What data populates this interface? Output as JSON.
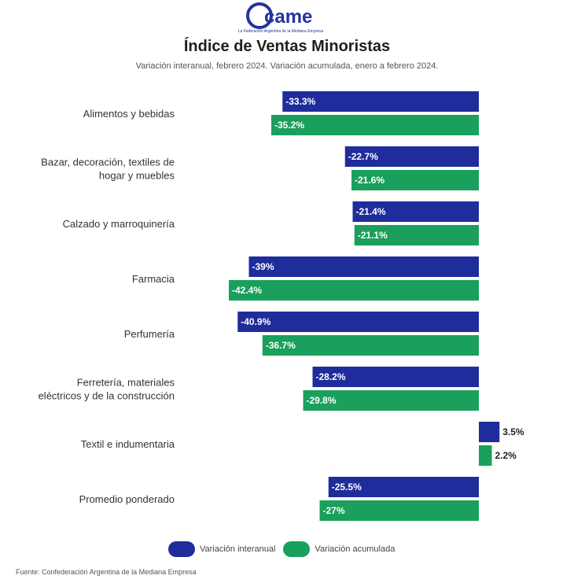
{
  "logo": {
    "text": "came",
    "tagline": "La Federación Argentina de la Mediana Empresa"
  },
  "title": "Índice de Ventas Minoristas",
  "subtitle": "Variación interanual, febrero 2024. Variación acumulada, enero a febrero 2024.",
  "source": "Fuente: Confederación Argentina de la Mediana Empresa",
  "colors": {
    "interanual": "#1f2d9c",
    "acumulada": "#1aa05c",
    "brand": "#2533a0"
  },
  "chart_data": {
    "type": "bar",
    "orientation": "horizontal",
    "title": "Índice de Ventas Minoristas",
    "subtitle": "Variación interanual, febrero 2024. Variación acumulada, enero a febrero 2024.",
    "categories": [
      [
        "Alimentos y bebidas"
      ],
      [
        "Bazar, decoración, textiles de",
        "hogar y muebles"
      ],
      [
        "Calzado y marroquinería"
      ],
      [
        "Farmacia"
      ],
      [
        "Perfumería"
      ],
      [
        "Ferretería, materiales",
        "eléctricos y de la construcción"
      ],
      [
        "Textil e indumentaria"
      ],
      [
        "Promedio ponderado"
      ]
    ],
    "series": [
      {
        "name": "Variación interanual",
        "values": [
          -33.3,
          -22.7,
          -21.4,
          -39,
          -40.9,
          -28.2,
          3.5,
          -25.5
        ],
        "labels": [
          "-33.3%",
          "-22.7%",
          "-21.4%",
          "-39%",
          "-40.9%",
          "-28.2%",
          "3.5%",
          "-25.5%"
        ]
      },
      {
        "name": "Variación acumulada",
        "values": [
          -35.2,
          -21.6,
          -21.1,
          -42.4,
          -36.7,
          -29.8,
          2.2,
          -27
        ],
        "labels": [
          "-35.2%",
          "-21.6%",
          "-21.1%",
          "-42.4%",
          "-36.7%",
          "-29.8%",
          "2.2%",
          "-27%"
        ]
      }
    ],
    "xlim": [
      -42.4,
      3.5
    ],
    "legend": "bottom",
    "grid": false
  }
}
